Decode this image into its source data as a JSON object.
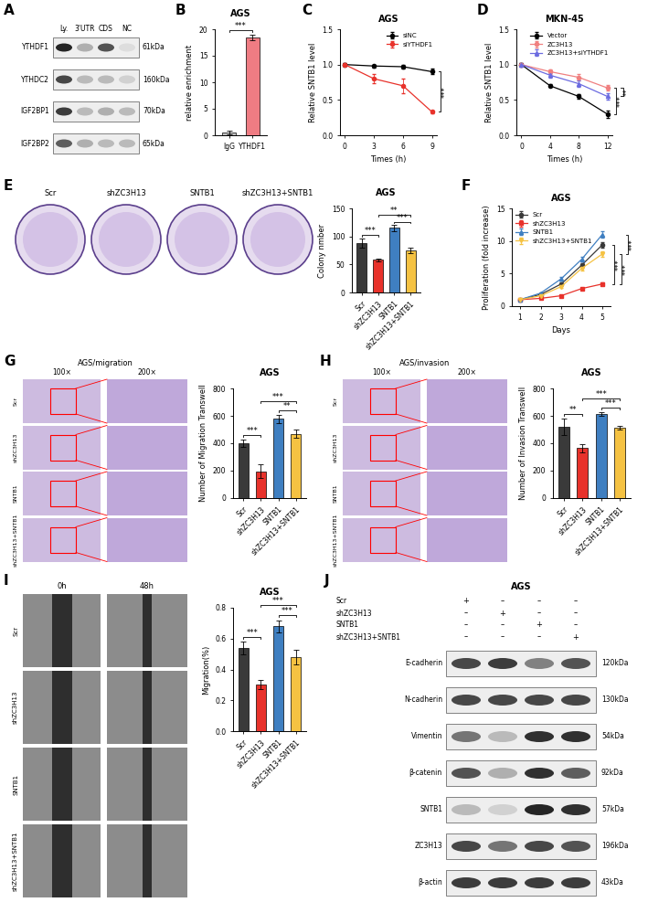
{
  "chart_data": [
    {
      "panel": "B",
      "type": "bar",
      "title": "AGS",
      "y_label": "relative enrichment",
      "categories": [
        "IgG",
        "YTHDF1"
      ],
      "values": [
        0.5,
        18.5
      ],
      "errors": [
        0.3,
        0.5
      ],
      "colors": [
        "#c0c0c0",
        "#ef7c83"
      ],
      "ylim": [
        0,
        20
      ],
      "yticks": [
        0,
        5,
        10,
        15,
        20
      ],
      "significance": [
        {
          "between": [
            "IgG",
            "YTHDF1"
          ],
          "label": "***"
        }
      ]
    },
    {
      "panel": "C",
      "type": "line",
      "title": "AGS",
      "x_label": "Times (h)",
      "y_label": "Relative SNTB1 level",
      "x": [
        0,
        3,
        6,
        9
      ],
      "xlim": [
        -0.5,
        9.5
      ],
      "xticks": [
        0,
        3,
        6,
        9
      ],
      "ylim": [
        0,
        1.5
      ],
      "yticks": [
        {
          "value": 0,
          "label": "0.0"
        },
        0.5,
        {
          "value": 1,
          "label": "1.0"
        },
        1.5
      ],
      "legend": "upper right",
      "series": [
        {
          "name": "siNC",
          "color": "#000000",
          "marker": "circle",
          "values": [
            1.0,
            0.98,
            0.97,
            0.9
          ],
          "errors": [
            0.02,
            0.02,
            0.03,
            0.04
          ]
        },
        {
          "name": "siYTHDF1",
          "color": "#e8322b",
          "marker": "circle",
          "values": [
            1.0,
            0.8,
            0.7,
            0.33
          ],
          "errors": [
            0.02,
            0.06,
            0.1,
            0.02
          ]
        }
      ],
      "significance": [
        {
          "between": [
            "siNC",
            "siYTHDF1"
          ],
          "label": "***"
        }
      ]
    },
    {
      "panel": "D",
      "type": "line",
      "title": "MKN-45",
      "x_label": "Times (h)",
      "y_label": "Relative SNTB1 level",
      "x": [
        0,
        4,
        8,
        12
      ],
      "xlim": [
        -0.7,
        12.7
      ],
      "xticks": [
        0,
        4,
        8,
        12
      ],
      "ylim": [
        0,
        1.5
      ],
      "yticks": [
        {
          "value": 0,
          "label": "0.0"
        },
        0.5,
        {
          "value": 1,
          "label": "1.0"
        },
        1.5
      ],
      "legend": "upper right",
      "series": [
        {
          "name": "Vector",
          "color": "#000000",
          "marker": "circle",
          "values": [
            1.0,
            0.7,
            0.55,
            0.3
          ],
          "errors": [
            0.02,
            0.02,
            0.03,
            0.05
          ]
        },
        {
          "name": "ZC3H13",
          "color": "#f08080",
          "marker": "circle",
          "values": [
            1.0,
            0.9,
            0.82,
            0.67
          ],
          "errors": [
            0.02,
            0.03,
            0.04,
            0.04
          ]
        },
        {
          "name": "ZC3H13+siYTHDF1",
          "color": "#6b6be0",
          "marker": "triangle",
          "values": [
            1.0,
            0.85,
            0.73,
            0.55
          ],
          "errors": [
            0.02,
            0.03,
            0.04,
            0.05
          ]
        }
      ],
      "significance": [
        {
          "between": [
            "Vector",
            "ZC3H13"
          ],
          "label": "***"
        },
        {
          "between": [
            "ZC3H13",
            "ZC3H13+siYTHDF1"
          ],
          "label": "**"
        }
      ]
    },
    {
      "type": "bar",
      "title": "AGS",
      "y_label": "Colony nmber",
      "categories": [
        "Scr",
        "shZC3H13",
        "SNTB1",
        "shZC3H13+SNTB1"
      ],
      "values": [
        88,
        58,
        115,
        75
      ],
      "errors": [
        8,
        3,
        5,
        5
      ],
      "colors": [
        "#3a3a3a",
        "#e8322b",
        "#3f7fc1",
        "#f5c242"
      ],
      "ylim": [
        0,
        150
      ],
      "yticks": [
        0,
        50,
        100,
        150
      ],
      "significance": [
        {
          "between": [
            "Scr",
            "shZC3H13"
          ],
          "label": "***"
        },
        {
          "between": [
            "SNTB1",
            "shZC3H13+SNTB1"
          ],
          "label": "***"
        },
        {
          "between": [
            "shZC3H13",
            "shZC3H13+SNTB1"
          ],
          "label": "**"
        }
      ]
    },
    {
      "panel": "F",
      "type": "line",
      "title": "AGS",
      "x_label": "Days",
      "y_label": "Proliferation (fold increase)",
      "x": [
        1,
        2,
        3,
        4,
        5
      ],
      "xlim": [
        0.6,
        5.4
      ],
      "xticks": [
        1,
        2,
        3,
        4,
        5
      ],
      "ylim": [
        0,
        15
      ],
      "yticks": [
        0,
        5,
        10,
        15
      ],
      "legend": "upper left",
      "series": [
        {
          "name": "Scr",
          "color": "#3a3a3a",
          "marker": "circle",
          "values": [
            1,
            1.8,
            3.4,
            6.3,
            9.4
          ],
          "errors": [
            0.05,
            0.1,
            0.2,
            0.3,
            0.4
          ]
        },
        {
          "name": "shZC3H13",
          "color": "#e8322b",
          "marker": "square",
          "values": [
            1,
            1.2,
            1.6,
            2.7,
            3.4
          ],
          "errors": [
            0.05,
            0.08,
            0.1,
            0.15,
            0.2
          ]
        },
        {
          "name": "SNTB1",
          "color": "#3f7fc1",
          "marker": "triangle",
          "values": [
            1,
            2.0,
            4.2,
            7.2,
            11.0
          ],
          "errors": [
            0.05,
            0.15,
            0.3,
            0.4,
            0.5
          ]
        },
        {
          "name": "shZC3H13+SNTB1",
          "color": "#f5c242",
          "marker": "triangle_down",
          "values": [
            1,
            1.6,
            3.0,
            5.8,
            8.0
          ],
          "errors": [
            0.05,
            0.1,
            0.2,
            0.3,
            0.4
          ]
        }
      ],
      "significance": [
        {
          "between": [
            "Scr",
            "shZC3H13"
          ],
          "label": "***"
        },
        {
          "between": [
            "shZC3H13",
            "shZC3H13+SNTB1"
          ],
          "label": "***"
        },
        {
          "between": [
            "SNTB1",
            "shZC3H13+SNTB1"
          ],
          "label": "***"
        }
      ]
    },
    {
      "type": "bar",
      "title": "AGS",
      "y_label": "Number of Migration Transwell",
      "categories": [
        "Scr",
        "shZC3H13",
        "SNTB1",
        "shZC3H13+SNTB1"
      ],
      "values": [
        400,
        195,
        580,
        470
      ],
      "errors": [
        25,
        50,
        30,
        30
      ],
      "colors": [
        "#3a3a3a",
        "#e8322b",
        "#3f7fc1",
        "#f5c242"
      ],
      "ylim": [
        0,
        800
      ],
      "yticks": [
        0,
        200,
        400,
        600,
        800
      ],
      "significance": [
        {
          "between": [
            "Scr",
            "shZC3H13"
          ],
          "label": "***"
        },
        {
          "between": [
            "SNTB1",
            "shZC3H13+SNTB1"
          ],
          "label": "**"
        },
        {
          "between": [
            "shZC3H13",
            "shZC3H13+SNTB1"
          ],
          "label": "***"
        }
      ]
    },
    {
      "type": "bar",
      "title": "AGS",
      "y_label": "Number of Invasion Transwell",
      "categories": [
        "Scr",
        "shZC3H13",
        "SNTB1",
        "shZC3H13+SNTB1"
      ],
      "values": [
        520,
        365,
        615,
        515
      ],
      "errors": [
        60,
        30,
        15,
        15
      ],
      "colors": [
        "#3a3a3a",
        "#e8322b",
        "#3f7fc1",
        "#f5c242"
      ],
      "ylim": [
        0,
        800
      ],
      "yticks": [
        0,
        200,
        400,
        600,
        800
      ],
      "significance": [
        {
          "between": [
            "Scr",
            "shZC3H13"
          ],
          "label": "**"
        },
        {
          "between": [
            "SNTB1",
            "shZC3H13+SNTB1"
          ],
          "label": "***"
        },
        {
          "between": [
            "shZC3H13",
            "shZC3H13+SNTB1"
          ],
          "label": "***"
        }
      ]
    },
    {
      "type": "bar",
      "title": "AGS",
      "y_label": "Migration(%)",
      "categories": [
        "Scr",
        "shZC3H13",
        "SNTB1",
        "shZC3H13+SNTB1"
      ],
      "values": [
        0.54,
        0.3,
        0.68,
        0.48
      ],
      "errors": [
        0.04,
        0.03,
        0.04,
        0.05
      ],
      "colors": [
        "#3a3a3a",
        "#e8322b",
        "#3f7fc1",
        "#f5c242"
      ],
      "ylim": [
        0,
        0.8
      ],
      "yticks": [
        {
          "value": 0,
          "label": "0.0"
        },
        0.2,
        0.4,
        0.6,
        0.8
      ],
      "significance": [
        {
          "between": [
            "Scr",
            "shZC3H13"
          ],
          "label": "***"
        },
        {
          "between": [
            "SNTB1",
            "shZC3H13+SNTB1"
          ],
          "label": "***"
        },
        {
          "between": [
            "shZC3H13",
            "shZC3H13+SNTB1"
          ],
          "label": "***"
        }
      ]
    }
  ],
  "blots": [
    {
      "panel": "A",
      "columns": [
        "Ly.",
        "3'UTR",
        "CDS",
        "NC"
      ],
      "rows": [
        {
          "name": "YTHDF1",
          "size": "61kDa",
          "band_intensity": [
            0.95,
            0.35,
            0.75,
            0.15
          ]
        },
        {
          "name": "YTHDC2",
          "size": "160kDa",
          "band_intensity": [
            0.8,
            0.3,
            0.3,
            0.2
          ]
        },
        {
          "name": "IGF2BP1",
          "size": "70kDa",
          "band_intensity": [
            0.85,
            0.3,
            0.35,
            0.3
          ]
        },
        {
          "name": "IGF2BP2",
          "size": "65kDa",
          "band_intensity": [
            0.7,
            0.35,
            0.3,
            0.3
          ]
        }
      ]
    },
    {
      "panel": "J",
      "title": "AGS",
      "conditions": [
        {
          "name": "Scr",
          "marks": [
            "+",
            "–",
            "–",
            "–"
          ]
        },
        {
          "name": "shZC3H13",
          "marks": [
            "–",
            "+",
            "–",
            "–"
          ]
        },
        {
          "name": "SNTB1",
          "marks": [
            "–",
            "–",
            "+",
            "–"
          ]
        },
        {
          "name": "shZC3H13+SNTB1",
          "marks": [
            "–",
            "–",
            "–",
            "+"
          ]
        }
      ],
      "rows": [
        {
          "name": "E-cadherin",
          "size": "120kDa",
          "band_intensity": [
            0.8,
            0.85,
            0.55,
            0.75
          ]
        },
        {
          "name": "N-cadherin",
          "size": "130kDa",
          "band_intensity": [
            0.8,
            0.8,
            0.8,
            0.8
          ]
        },
        {
          "name": "Vimentin",
          "size": "54kDa",
          "band_intensity": [
            0.6,
            0.3,
            0.9,
            0.9
          ]
        },
        {
          "name": "β-catenin",
          "size": "92kDa",
          "band_intensity": [
            0.75,
            0.35,
            0.9,
            0.7
          ]
        },
        {
          "name": "SNTB1",
          "size": "57kDa",
          "band_intensity": [
            0.3,
            0.2,
            0.95,
            0.9
          ]
        },
        {
          "name": "ZC3H13",
          "size": "196kDa",
          "band_intensity": [
            0.8,
            0.6,
            0.8,
            0.75
          ]
        },
        {
          "name": "β-actin",
          "size": "43kDa",
          "band_intensity": [
            0.85,
            0.85,
            0.85,
            0.85
          ]
        }
      ]
    }
  ],
  "image_panels": [
    {
      "panel": "E",
      "type": "colony",
      "labels": [
        "Scr",
        "shZC3H13",
        "SNTB1",
        "shZC3H13+SNTB1"
      ]
    },
    {
      "panel": "G",
      "type": "transwell",
      "title": "AGS/migration",
      "columns": [
        "100×",
        "200×"
      ],
      "rows": [
        "Scr",
        "shZC3H13",
        "SNTB1",
        "shZC3H13+SNTB1"
      ]
    },
    {
      "panel": "H",
      "type": "transwell",
      "title": "AGS/invasion",
      "columns": [
        "100×",
        "200×"
      ],
      "rows": [
        "Scr",
        "shZC3H13",
        "SNTB1",
        "shZC3H13+SNTB1"
      ]
    },
    {
      "panel": "I",
      "type": "wound",
      "columns": [
        "0h",
        "48h"
      ],
      "rows": [
        "Scr",
        "shZC3H13",
        "SNTB1",
        "shZC3H13+SNTB1"
      ]
    }
  ]
}
